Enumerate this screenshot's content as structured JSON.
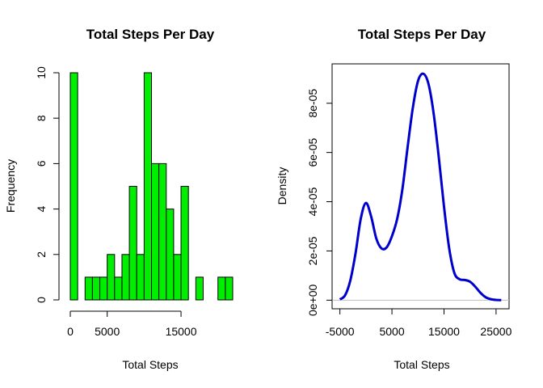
{
  "chart_data": [
    {
      "type": "bar",
      "title": "Total Steps Per Day",
      "xlabel": "Total Steps",
      "ylabel": "Frequency",
      "bin_width": 1000,
      "x": [
        0,
        1000,
        2000,
        3000,
        4000,
        5000,
        6000,
        7000,
        8000,
        9000,
        10000,
        11000,
        12000,
        13000,
        14000,
        15000,
        16000,
        17000,
        18000,
        19000,
        20000,
        21000
      ],
      "values": [
        10,
        0,
        1,
        1,
        1,
        2,
        1,
        2,
        5,
        2,
        10,
        6,
        6,
        4,
        2,
        5,
        0,
        1,
        0,
        0,
        1,
        1
      ],
      "xlim": [
        0,
        22000
      ],
      "ylim": [
        0,
        10
      ],
      "x_ticks": [
        "0",
        "5000",
        "15000"
      ],
      "y_ticks": [
        "0",
        "2",
        "4",
        "6",
        "8",
        "10"
      ],
      "bar_color": "#00ee00"
    },
    {
      "type": "line",
      "title": "Total Steps Per Day",
      "xlabel": "Total Steps",
      "ylabel": "Density",
      "x": [
        -5000,
        -4000,
        -3000,
        -2000,
        -1000,
        0,
        1000,
        2000,
        3000,
        4000,
        5000,
        6000,
        7000,
        8000,
        9000,
        10000,
        11000,
        12000,
        13000,
        14000,
        15000,
        16000,
        17000,
        18000,
        19000,
        20000,
        21000,
        22000,
        23000,
        24000,
        25000,
        26000
      ],
      "y": [
        3e-07,
        2e-06,
        8e-06,
        1.9e-05,
        3.3e-05,
        3.95e-05,
        3.4e-05,
        2.5e-05,
        2.1e-05,
        2.15e-05,
        2.6e-05,
        3.3e-05,
        4.5e-05,
        6.2e-05,
        7.8e-05,
        8.9e-05,
        9.2e-05,
        8.8e-05,
        7.6e-05,
        5.8e-05,
        3.8e-05,
        2.1e-05,
        1.1e-05,
        8.5e-06,
        8.2e-06,
        7.5e-06,
        5.5e-06,
        3e-06,
        1.2e-06,
        4e-07,
        1e-07,
        2e-08
      ],
      "xlim": [
        -6500,
        27500
      ],
      "ylim": [
        0,
        9.6e-05
      ],
      "x_ticks": [
        "-5000",
        "5000",
        "15000",
        "25000"
      ],
      "y_ticks": [
        "0e+00",
        "2e-05",
        "4e-05",
        "6e-05",
        "8e-05"
      ],
      "line_color": "#0000cd",
      "baseline_color": "#bebebe"
    }
  ]
}
